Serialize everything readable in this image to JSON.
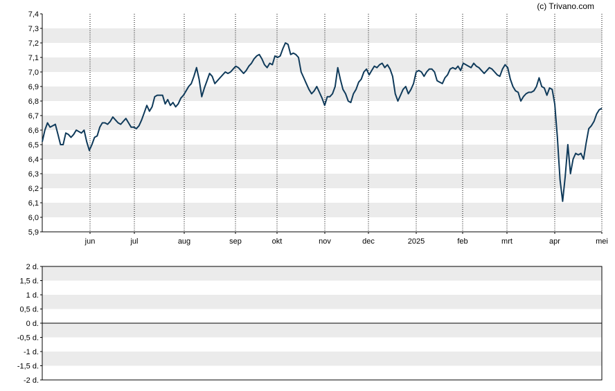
{
  "credit": "(c) Trivano.com",
  "colors": {
    "line": "#0f3a5a",
    "band": "#ebebeb",
    "grid": "#000000"
  },
  "chart_data": [
    {
      "type": "line",
      "ylim": [
        5.9,
        7.4
      ],
      "yticks": [
        "7,4",
        "7,3",
        "7,2",
        "7,1",
        "7,0",
        "6,9",
        "6,8",
        "6,7",
        "6,6",
        "6,5",
        "6,4",
        "6,3",
        "6,2",
        "6,1",
        "6,0",
        "5,9"
      ],
      "xticks": [
        "jun",
        "jul",
        "aug",
        "sep",
        "okt",
        "nov",
        "dec",
        "2025",
        "feb",
        "mrt",
        "apr",
        "mei"
      ],
      "grid": "horizontal bands, dotted vertical month lines",
      "series": [
        {
          "values": [
            6.52,
            6.6,
            6.65,
            6.62,
            6.63,
            6.64,
            6.57,
            6.5,
            6.5,
            6.58,
            6.57,
            6.55,
            6.57,
            6.6,
            6.59,
            6.58,
            6.6,
            6.52,
            6.46,
            6.5,
            6.55,
            6.56,
            6.62,
            6.65,
            6.65,
            6.64,
            6.66,
            6.69,
            6.67,
            6.65,
            6.64,
            6.66,
            6.68,
            6.65,
            6.62,
            6.62,
            6.61,
            6.63,
            6.67,
            6.72,
            6.77,
            6.73,
            6.76,
            6.83,
            6.84,
            6.84,
            6.84,
            6.78,
            6.81,
            6.77,
            6.79,
            6.76,
            6.78,
            6.82,
            6.84,
            6.87,
            6.9,
            6.92,
            6.97,
            7.03,
            6.95,
            6.83,
            6.89,
            6.94,
            6.99,
            6.97,
            6.92,
            6.94,
            6.96,
            6.98,
            7.0,
            6.99,
            7.0,
            7.02,
            7.04,
            7.03,
            7.01,
            6.99,
            7.01,
            7.04,
            7.06,
            7.09,
            7.11,
            7.12,
            7.09,
            7.05,
            7.03,
            7.06,
            7.05,
            7.11,
            7.1,
            7.11,
            7.16,
            7.2,
            7.19,
            7.12,
            7.13,
            7.12,
            7.1,
            7.0,
            6.96,
            6.92,
            6.88,
            6.85,
            6.87,
            6.9,
            6.86,
            6.82,
            6.77,
            6.83,
            6.83,
            6.85,
            6.9,
            7.03,
            6.95,
            6.88,
            6.85,
            6.8,
            6.79,
            6.85,
            6.88,
            6.93,
            6.95,
            7.0,
            7.02,
            6.98,
            7.01,
            7.04,
            7.03,
            7.05,
            7.06,
            7.03,
            7.05,
            7.02,
            6.97,
            6.85,
            6.8,
            6.84,
            6.88,
            6.9,
            6.85,
            6.88,
            6.92,
            7.0,
            7.01,
            7.0,
            6.97,
            7.0,
            7.02,
            7.02,
            7.0,
            6.94,
            6.93,
            6.92,
            6.96,
            6.98,
            7.02,
            7.03,
            7.02,
            7.04,
            7.01,
            7.06,
            7.05,
            7.04,
            7.03,
            7.06,
            7.04,
            7.03,
            7.01,
            6.99,
            7.01,
            7.03,
            7.02,
            7.0,
            6.98,
            6.97,
            7.02,
            7.05,
            7.03,
            6.95,
            6.9,
            6.87,
            6.86,
            6.8,
            6.83,
            6.85,
            6.86,
            6.86,
            6.87,
            6.9,
            6.96,
            6.9,
            6.89,
            6.84,
            6.89,
            6.88,
            6.78,
            6.55,
            6.26,
            6.11,
            6.28,
            6.5,
            6.3,
            6.4,
            6.44,
            6.43,
            6.44,
            6.4,
            6.51,
            6.61,
            6.63,
            6.66,
            6.71,
            6.74,
            6.75
          ]
        }
      ]
    },
    {
      "type": "line",
      "ylim": [
        -2,
        2
      ],
      "yticks": [
        "2 d.",
        "1,5 d.",
        "1 d.",
        "0,5 d.",
        "0 d.",
        "-0,5 d.",
        "-1 d.",
        "-1,5 d.",
        "-2 d."
      ],
      "grid": "horizontal bands, solid zero line",
      "series": []
    }
  ]
}
